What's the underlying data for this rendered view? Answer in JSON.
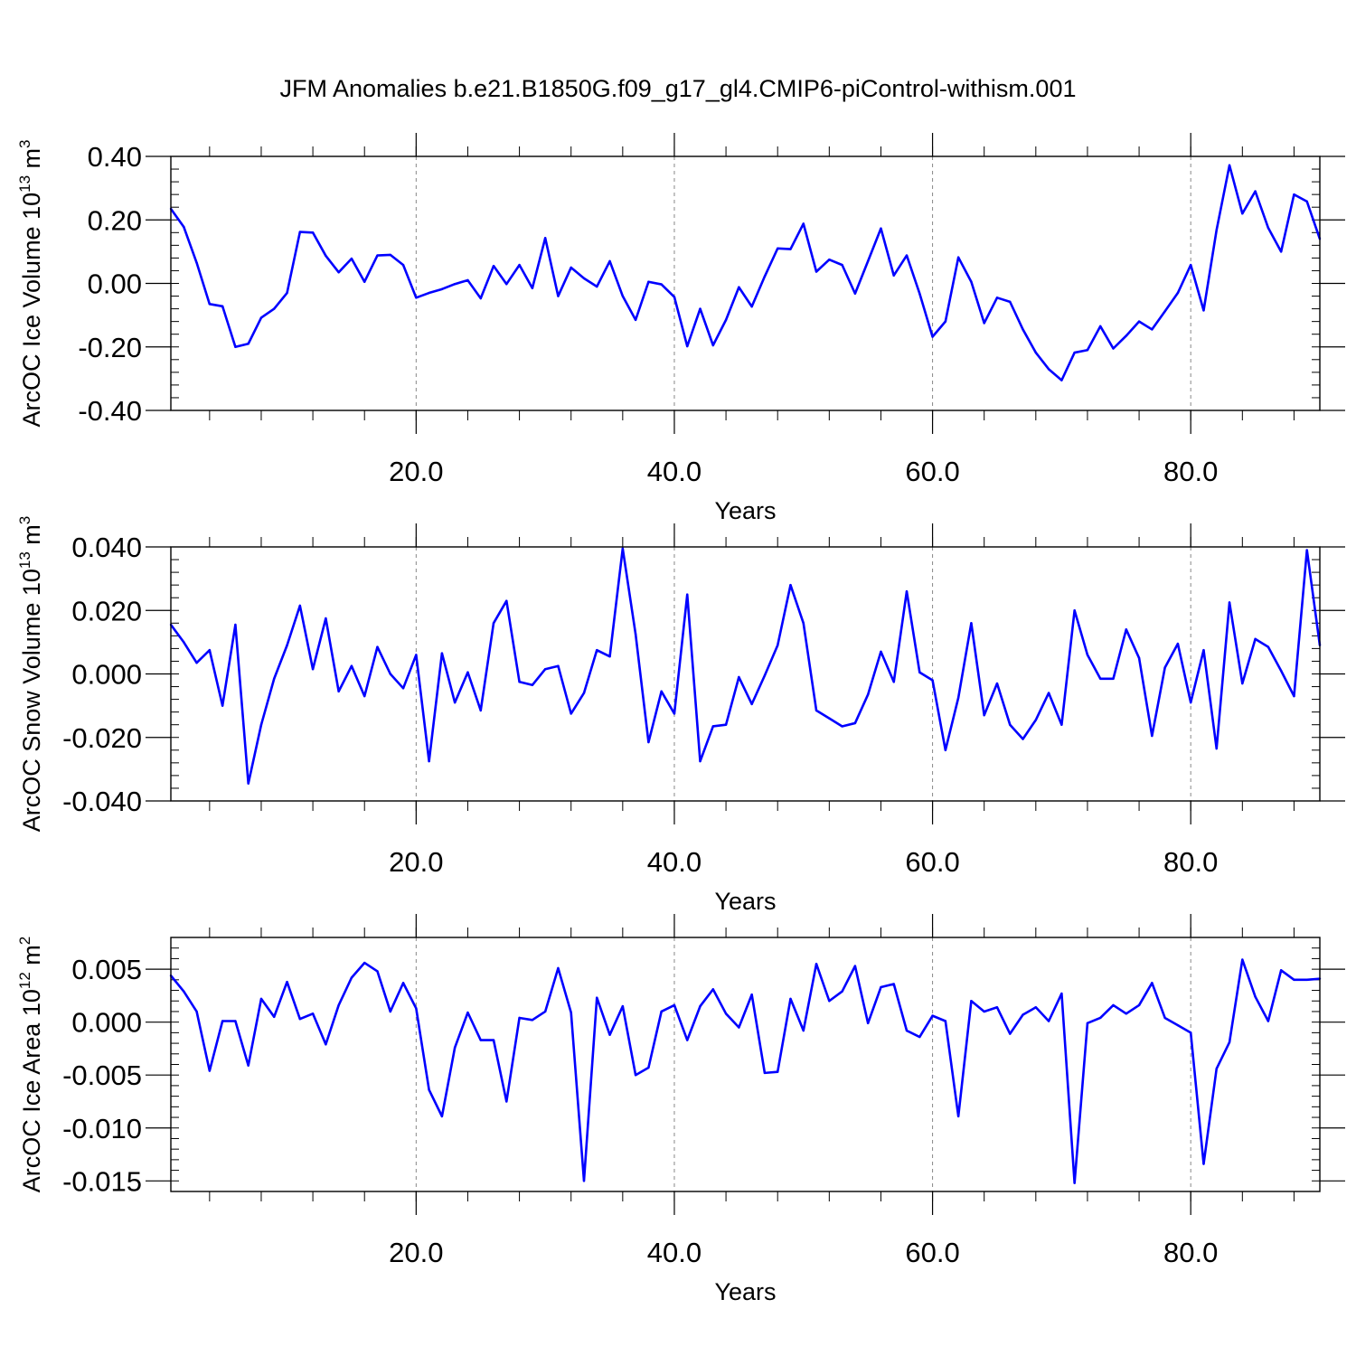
{
  "title": "JFM Anomalies b.e21.B1850G.f09_g17_gl4.CMIP6-piControl-withism.001",
  "line_color": "#0000ff",
  "chart_data": [
    {
      "type": "line",
      "ylabel_main": "ArcOC Ice Volume 10",
      "ylabel_exp": "13",
      "ylabel_unit": "m",
      "ylabel_unit_exp": "3",
      "xlabel": "Years",
      "xlim": [
        1,
        90
      ],
      "ylim": [
        -0.4,
        0.4
      ],
      "x_ticks": [
        20,
        40,
        60,
        80
      ],
      "x_tick_labels": [
        "20.0",
        "40.0",
        "60.0",
        "80.0"
      ],
      "y_ticks": [
        -0.4,
        -0.2,
        0.0,
        0.2,
        0.4
      ],
      "y_tick_labels": [
        "-0.40",
        "-0.20",
        "0.00",
        "0.20",
        "0.40"
      ],
      "y_minor_step": 0.04,
      "x_minor_step": 4,
      "grid": "vertical dashed at major x ticks",
      "series": [
        {
          "x_start": 1,
          "values": [
            0.235,
            0.178,
            0.065,
            -0.065,
            -0.072,
            -0.2,
            -0.19,
            -0.108,
            -0.08,
            -0.03,
            0.162,
            0.16,
            0.087,
            0.035,
            0.078,
            0.005,
            0.088,
            0.09,
            0.058,
            -0.045,
            -0.03,
            -0.018,
            -0.002,
            0.01,
            -0.047,
            0.055,
            -0.002,
            0.058,
            -0.015,
            0.143,
            -0.04,
            0.05,
            0.016,
            -0.01,
            0.07,
            -0.04,
            -0.115,
            0.005,
            -0.003,
            -0.043,
            -0.198,
            -0.08,
            -0.195,
            -0.115,
            -0.012,
            -0.073,
            0.022,
            0.11,
            0.108,
            0.188,
            0.037,
            0.075,
            0.058,
            -0.032,
            0.07,
            0.173,
            0.025,
            0.088,
            -0.032,
            -0.168,
            -0.12,
            0.082,
            0.005,
            -0.125,
            -0.045,
            -0.058,
            -0.145,
            -0.218,
            -0.27,
            -0.305,
            -0.218,
            -0.21,
            -0.135,
            -0.205,
            -0.165,
            -0.12,
            -0.145,
            -0.088,
            -0.03,
            0.058,
            -0.085,
            0.168,
            0.372,
            0.22,
            0.29,
            0.175,
            0.1,
            0.28,
            0.258,
            0.14
          ]
        }
      ]
    },
    {
      "type": "line",
      "ylabel_main": "ArcOC Snow Volume 10",
      "ylabel_exp": "13",
      "ylabel_unit": "m",
      "ylabel_unit_exp": "3",
      "xlabel": "Years",
      "xlim": [
        1,
        90
      ],
      "ylim": [
        -0.04,
        0.04
      ],
      "x_ticks": [
        20,
        40,
        60,
        80
      ],
      "x_tick_labels": [
        "20.0",
        "40.0",
        "60.0",
        "80.0"
      ],
      "y_ticks": [
        -0.04,
        -0.02,
        0.0,
        0.02,
        0.04
      ],
      "y_tick_labels": [
        "-0.040",
        "-0.020",
        "0.000",
        "0.020",
        "0.040"
      ],
      "y_minor_step": 0.004,
      "x_minor_step": 4,
      "grid": "vertical dashed at major x ticks",
      "series": [
        {
          "x_start": 1,
          "values": [
            0.0155,
            0.01,
            0.0035,
            0.0075,
            -0.01,
            0.0155,
            -0.0345,
            -0.016,
            -0.0015,
            0.009,
            0.0215,
            0.0015,
            0.0175,
            -0.0055,
            0.0025,
            -0.007,
            0.0085,
            0.0,
            -0.0045,
            0.006,
            -0.0275,
            0.0065,
            -0.009,
            0.0005,
            -0.0115,
            0.016,
            0.023,
            -0.0025,
            -0.0035,
            0.0015,
            0.0025,
            -0.0125,
            -0.006,
            0.0075,
            0.0055,
            0.0395,
            0.0125,
            -0.0215,
            -0.0055,
            -0.0125,
            0.025,
            -0.0275,
            -0.0165,
            -0.016,
            -0.001,
            -0.0095,
            -0.0005,
            0.009,
            0.028,
            0.016,
            -0.0115,
            -0.014,
            -0.0165,
            -0.0155,
            -0.0065,
            0.007,
            -0.0025,
            0.026,
            0.0005,
            -0.002,
            -0.024,
            -0.0075,
            0.016,
            -0.013,
            -0.003,
            -0.016,
            -0.0205,
            -0.0145,
            -0.006,
            -0.016,
            0.02,
            0.006,
            -0.0015,
            -0.0015,
            0.014,
            0.005,
            -0.0195,
            0.002,
            0.0095,
            -0.009,
            0.0075,
            -0.0235,
            0.0225,
            -0.003,
            0.011,
            0.0085,
            0.001,
            -0.007,
            0.039,
            0.009
          ]
        }
      ]
    },
    {
      "type": "line",
      "ylabel_main": "ArcOC Ice Area 10",
      "ylabel_exp": "12",
      "ylabel_unit": "m",
      "ylabel_unit_exp": "2",
      "xlabel": "Years",
      "xlim": [
        1,
        90
      ],
      "ylim": [
        -0.016,
        0.008
      ],
      "x_ticks": [
        20,
        40,
        60,
        80
      ],
      "x_tick_labels": [
        "20.0",
        "40.0",
        "60.0",
        "80.0"
      ],
      "y_ticks": [
        -0.015,
        -0.01,
        -0.005,
        0.0,
        0.005
      ],
      "y_tick_labels": [
        "-0.015",
        "-0.010",
        "-0.005",
        "0.000",
        "0.005"
      ],
      "y_minor_step": 0.001,
      "x_minor_step": 4,
      "grid": "vertical dashed at major x ticks",
      "series": [
        {
          "x_start": 1,
          "values": [
            0.0044,
            0.0029,
            0.001,
            -0.0046,
            0.0001,
            0.0001,
            -0.0041,
            0.0022,
            0.0005,
            0.0038,
            0.0003,
            0.0008,
            -0.0021,
            0.0016,
            0.0042,
            0.0056,
            0.0048,
            0.001,
            0.0037,
            0.0013,
            -0.0064,
            -0.0089,
            -0.0024,
            0.0009,
            -0.0017,
            -0.0017,
            -0.0075,
            0.0004,
            0.0002,
            0.001,
            0.0051,
            0.0009,
            -0.015,
            0.0023,
            -0.0012,
            0.0015,
            -0.005,
            -0.0043,
            0.001,
            0.0016,
            -0.0017,
            0.0015,
            0.0031,
            0.0008,
            -0.0005,
            0.0026,
            -0.0048,
            -0.0047,
            0.0022,
            -0.0008,
            0.0055,
            0.002,
            0.0029,
            0.0053,
            -0.0001,
            0.0033,
            0.0036,
            -0.0008,
            -0.0014,
            0.0006,
            0.0001,
            -0.0089,
            0.002,
            0.001,
            0.0014,
            -0.0011,
            0.0007,
            0.0014,
            0.0001,
            0.0027,
            -0.0152,
            -0.0001,
            0.0004,
            0.0016,
            0.0008,
            0.0016,
            0.0037,
            0.0004,
            -0.0003,
            -0.001,
            -0.0134,
            -0.0044,
            -0.0019,
            0.0059,
            0.0024,
            0.0001,
            0.0049,
            0.004,
            0.004,
            0.0041
          ]
        }
      ]
    }
  ]
}
